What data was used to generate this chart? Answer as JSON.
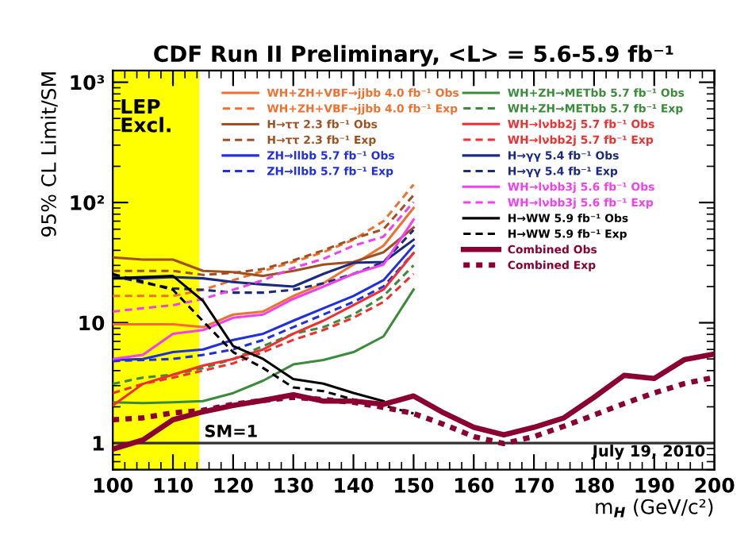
{
  "chart_data": {
    "type": "line",
    "title": "CDF Run II Preliminary, <L> = 5.6-5.9 fb⁻¹",
    "xlabel": "m$_{H}$ (GeV/c²)",
    "ylabel": "95% CL Limit/SM",
    "x": [
      100,
      105,
      110,
      115,
      120,
      125,
      130,
      135,
      140,
      145,
      150
    ],
    "xlim": [
      100,
      200
    ],
    "xticks": [
      100,
      110,
      120,
      130,
      140,
      150,
      160,
      170,
      180,
      190,
      200
    ],
    "log": true,
    "ylim": [
      0.6,
      1250
    ],
    "yticks": [
      {
        "value": 1,
        "label": "1"
      },
      {
        "value": 10,
        "label": "10"
      },
      {
        "value": 100,
        "label": "10²"
      },
      {
        "value": 1000,
        "label": "10³"
      }
    ],
    "grid": false,
    "legend": "top",
    "series": [
      {
        "name": "WH+ZH+VBF→jjbb 4.0 fb⁻¹ Obs",
        "color": "#f07030",
        "line_style": "solid",
        "values": [
          9.7,
          9.7,
          9.7,
          9.2,
          11.7,
          12.4,
          16.7,
          21.3,
          30.5,
          43.7,
          90
        ]
      },
      {
        "name": "WH+ZH+VBF→jjbb 4.0 fb⁻¹ Exp",
        "color": "#f07030",
        "line_style": "dashed",
        "values": [
          16.7,
          16.7,
          16.7,
          18.8,
          22.6,
          27,
          32,
          38.6,
          49,
          70,
          141
        ]
      },
      {
        "name": "H→ττ 2.3 fb⁻¹ Obs",
        "color": "#a05020",
        "line_style": "solid",
        "values": [
          35,
          33.5,
          33.5,
          27,
          26.4,
          24.5,
          27,
          30.5,
          32,
          38.6,
          62
        ]
      },
      {
        "name": "H→ττ 2.3 fb⁻¹ Exp",
        "color": "#a05020",
        "line_style": "dashed",
        "values": [
          27,
          27,
          27,
          25,
          26,
          28,
          33,
          40,
          50,
          60,
          115
        ]
      },
      {
        "name": "ZH→llbb 5.7 fb⁻¹ Obs",
        "color": "#2030e0",
        "line_style": "solid",
        "values": [
          4.9,
          5.0,
          5.7,
          6.0,
          7.2,
          8.1,
          10.4,
          13.2,
          16.7,
          22.6,
          43.6
        ]
      },
      {
        "name": "ZH→llbb 5.7 fb⁻¹ Exp",
        "color": "#2030e0",
        "line_style": "dashed",
        "values": [
          4.8,
          4.9,
          5.0,
          5.4,
          6.0,
          7.2,
          9.2,
          11.7,
          14.9,
          20,
          38
        ]
      },
      {
        "name": "WH+ZH→METbb 5.7 fb⁻¹ Obs",
        "color": "#3a8c3a",
        "line_style": "solid",
        "values": [
          2.18,
          2.15,
          2.18,
          2.23,
          2.6,
          3.3,
          4.5,
          4.9,
          5.7,
          7.7,
          18.9
        ]
      },
      {
        "name": "WH+ZH→METbb 5.7 fb⁻¹ Exp",
        "color": "#3a8c3a",
        "line_style": "dashed",
        "values": [
          3.1,
          3.5,
          3.7,
          4.2,
          5.0,
          6.4,
          8.1,
          9.2,
          11.7,
          16.7,
          30
        ]
      },
      {
        "name": "WH→lνbb2j 5.7 fb⁻¹ Obs",
        "color": "#f03030",
        "line_style": "solid",
        "values": [
          2.05,
          3.1,
          3.7,
          4.4,
          5.0,
          6.0,
          8.1,
          10.4,
          14,
          18.9,
          38
        ]
      },
      {
        "name": "WH→lνbb2j 5.7 fb⁻¹ Exp",
        "color": "#f03030",
        "line_style": "dashed",
        "values": [
          2.6,
          3.1,
          3.5,
          4.0,
          4.6,
          5.7,
          7.2,
          8.7,
          11,
          14.9,
          25.5
        ]
      },
      {
        "name": "H→γγ 5.4 fb⁻¹ Obs",
        "color": "#1a2a80",
        "line_style": "solid",
        "values": [
          23.4,
          23.4,
          24,
          23.4,
          21.8,
          20.8,
          20,
          25.5,
          31.5,
          32,
          49
        ]
      },
      {
        "name": "H→γγ 5.4 fb⁻¹ Exp",
        "color": "#1a2a80",
        "line_style": "dashed",
        "values": [
          24.5,
          21.5,
          19.3,
          18.8,
          17.8,
          17.8,
          18.8,
          21.3,
          25.5,
          32,
          59
        ]
      },
      {
        "name": "WH→lνbb3j 5.6 fb⁻¹ Obs",
        "color": "#f040f0",
        "line_style": "solid",
        "values": [
          5.0,
          5.4,
          8.1,
          8.7,
          11,
          11.7,
          15.8,
          20,
          25.5,
          30.5,
          72
        ]
      },
      {
        "name": "WH→lνbb3j 5.6 fb⁻¹ Exp",
        "color": "#f040f0",
        "line_style": "dashed",
        "values": [
          12.4,
          13.2,
          14,
          15.8,
          18.8,
          22.6,
          28.6,
          34,
          43.7,
          52,
          101
        ]
      },
      {
        "name": "H→WW 5.9 fb⁻¹ Obs",
        "color": "#000000",
        "line_style": "solid",
        "values": [
          23.4,
          24,
          24.5,
          15.2,
          6.4,
          5.0,
          3.4,
          3.12,
          2.61,
          2.23,
          null
        ]
      },
      {
        "name": "H→WW 5.9 fb⁻¹ Exp",
        "color": "#000000",
        "line_style": "dashed",
        "values": [
          25.4,
          22,
          18.8,
          10.3,
          5.7,
          4.2,
          2.9,
          2.7,
          2.3,
          2.05,
          1.76
        ]
      },
      {
        "name": "Combined Obs",
        "color": "#8b0030",
        "line_style": "solid",
        "x": [
          100,
          105,
          110,
          115,
          120,
          125,
          130,
          135,
          140,
          145,
          150,
          155,
          160,
          165,
          170,
          175,
          180,
          185,
          190,
          195,
          200
        ],
        "values": [
          0.89,
          1.06,
          1.56,
          1.82,
          2.05,
          2.26,
          2.52,
          2.23,
          2.23,
          2.1,
          2.46,
          1.78,
          1.35,
          1.17,
          1.35,
          1.62,
          2.4,
          3.65,
          3.44,
          4.93,
          5.5
        ]
      },
      {
        "name": "Combined Exp",
        "color": "#8b0030",
        "line_style": "dotted",
        "x": [
          100,
          105,
          110,
          115,
          120,
          125,
          130,
          135,
          140,
          145,
          150,
          155,
          160,
          165,
          170,
          175,
          180,
          185,
          190,
          195,
          200
        ],
        "values": [
          1.56,
          1.62,
          1.78,
          1.87,
          2.1,
          2.26,
          2.4,
          2.3,
          2.18,
          1.98,
          1.76,
          1.43,
          1.13,
          0.99,
          1.13,
          1.38,
          1.71,
          2.13,
          2.61,
          3.12,
          3.52
        ]
      }
    ],
    "bands": [
      {
        "axis": "x",
        "from": 100,
        "to": 114.4,
        "label": "LEP Excl.",
        "color": "#ffff00"
      }
    ],
    "ref_lines": [
      {
        "axis": "y",
        "value": 1,
        "label": "SM=1",
        "color": "#333333",
        "line_style": "solid"
      }
    ],
    "annotations": [
      "July 19, 2010"
    ]
  }
}
